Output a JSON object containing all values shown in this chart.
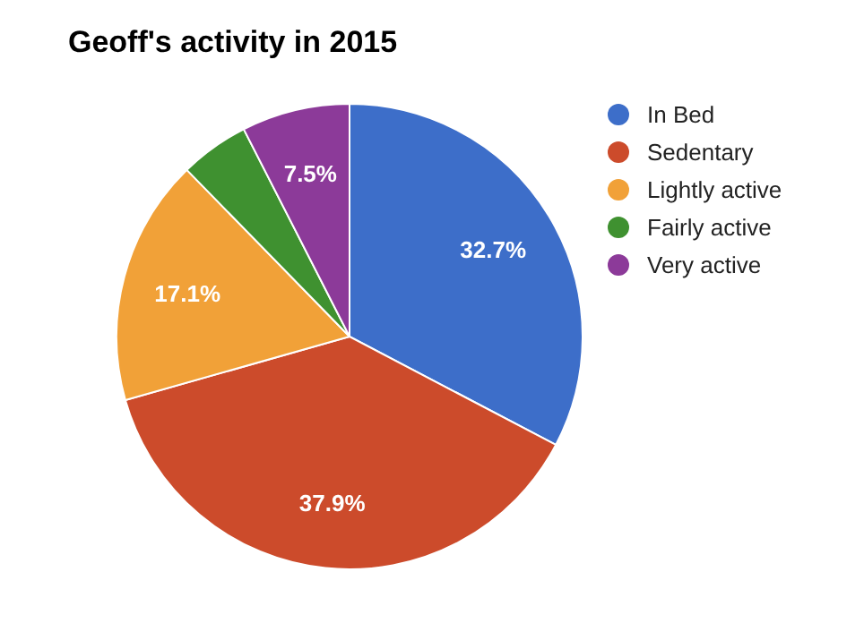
{
  "chart_data": {
    "type": "pie",
    "title": "Geoff's activity in 2015",
    "categories": [
      "In Bed",
      "Sedentary",
      "Lightly active",
      "Fairly active",
      "Very active"
    ],
    "values": [
      32.7,
      37.9,
      17.1,
      4.8,
      7.5
    ],
    "colors": [
      "#3d6ec9",
      "#cc4b2b",
      "#f1a138",
      "#3f9130",
      "#8c3a99"
    ],
    "value_labels": [
      "32.7%",
      "37.9%",
      "17.1%",
      null,
      "7.5%"
    ],
    "legend": "right"
  }
}
